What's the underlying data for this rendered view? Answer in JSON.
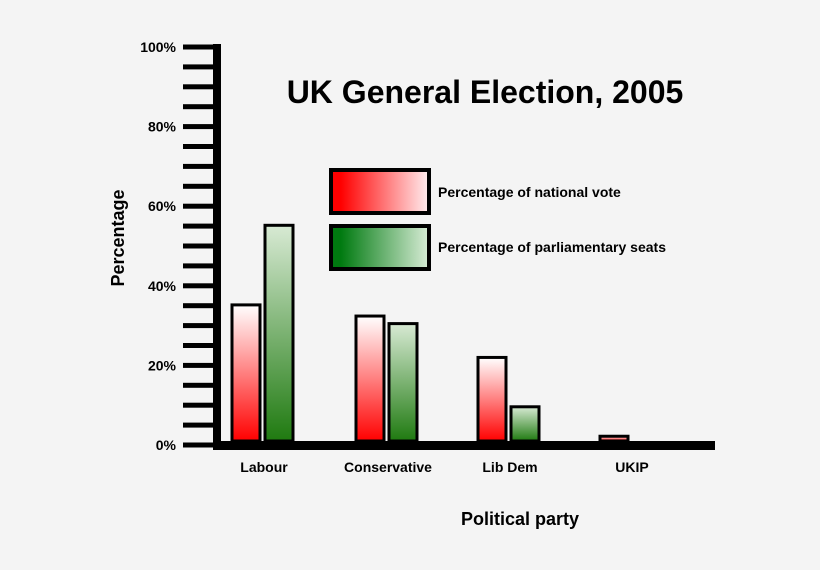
{
  "chart_data": {
    "type": "bar",
    "title": "UK General Election, 2005",
    "xlabel": "Political party",
    "ylabel": "Percentage",
    "ylim": [
      0,
      100
    ],
    "yticks": [
      "0%",
      "20%",
      "40%",
      "60%",
      "80%",
      "100%"
    ],
    "categories": [
      "Labour",
      "Conservative",
      "Lib Dem",
      "UKIP"
    ],
    "series": [
      {
        "name": "Percentage of national vote",
        "color": "#ff0000",
        "values": [
          35.2,
          32.4,
          22.0,
          2.2
        ]
      },
      {
        "name": "Percentage of parliamentary seats",
        "color": "#007a00",
        "values": [
          55.2,
          30.5,
          9.6,
          0
        ]
      }
    ],
    "legend": "top-center",
    "grid": false
  }
}
